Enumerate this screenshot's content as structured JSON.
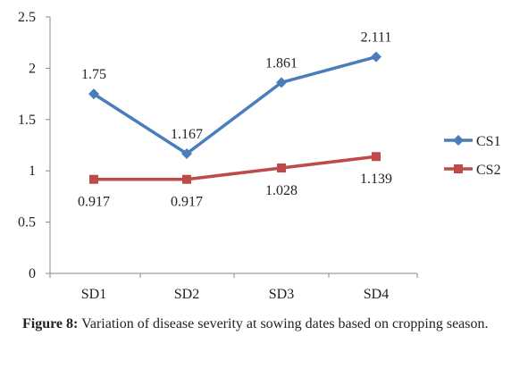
{
  "chart_data": {
    "type": "line",
    "categories": [
      "SD1",
      "SD2",
      "SD3",
      "SD4"
    ],
    "series": [
      {
        "name": "CS1",
        "values": [
          1.75,
          1.167,
          1.861,
          2.111
        ],
        "labels": [
          "1.75",
          "1.167",
          "1.861",
          "2.111"
        ],
        "color": "#4a7ebb",
        "marker": "diamond"
      },
      {
        "name": "CS2",
        "values": [
          0.917,
          0.917,
          1.028,
          1.139
        ],
        "labels": [
          "0.917",
          "0.917",
          "1.028",
          "1.139"
        ],
        "color": "#be4b48",
        "marker": "square"
      }
    ],
    "ylim": [
      0,
      2.5
    ],
    "yticks": [
      "0",
      "0.5",
      "1",
      "1.5",
      "2",
      "2.5"
    ],
    "grid": false,
    "legend": "right",
    "title": "",
    "xlabel": "",
    "ylabel": ""
  },
  "caption": {
    "label": "Figure 8:",
    "text": " Variation of disease severity at sowing dates based on cropping season."
  }
}
